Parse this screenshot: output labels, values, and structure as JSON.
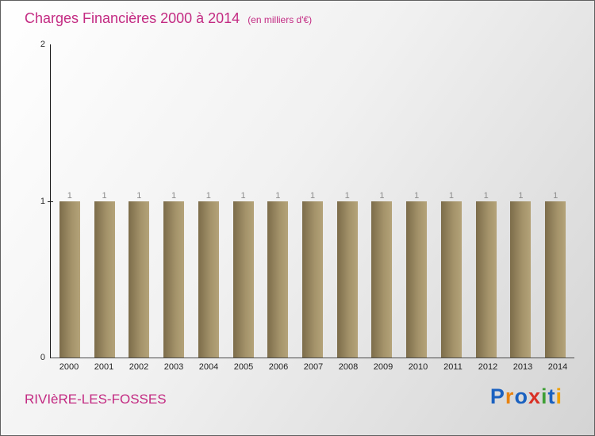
{
  "header": {
    "title": "Charges Financières 2000 à 2014",
    "subtitle": "(en milliers d'€)"
  },
  "footer": {
    "name": "RIVIèRE-LES-FOSSES",
    "logo_text": "Proxiti"
  },
  "logo": {
    "letters": [
      {
        "ch": "P",
        "color": "#1a61c0"
      },
      {
        "ch": "r",
        "color": "#e8820f"
      },
      {
        "ch": "o",
        "color": "#1a61c0"
      },
      {
        "ch": "x",
        "color": "#d93025"
      },
      {
        "ch": "i",
        "color": "#3f9f36"
      },
      {
        "ch": "t",
        "color": "#1a61c0"
      },
      {
        "ch": "i",
        "color": "#efa000"
      }
    ]
  },
  "colors": {
    "accent": "#c32a82",
    "bar_gradient_from": "#7c6c4a",
    "bar_gradient_to": "#b4a379",
    "value_label": "#8a8a8a",
    "axis": "#1a1a1a"
  },
  "chart_data": {
    "type": "bar",
    "title": "Charges Financières 2000 à 2014",
    "subtitle": "(en milliers d'€)",
    "categories": [
      "2000",
      "2001",
      "2002",
      "2003",
      "2004",
      "2005",
      "2006",
      "2007",
      "2008",
      "2009",
      "2010",
      "2011",
      "2012",
      "2013",
      "2014"
    ],
    "values": [
      1,
      1,
      1,
      1,
      1,
      1,
      1,
      1,
      1,
      1,
      1,
      1,
      1,
      1,
      1
    ],
    "xlabel": "",
    "ylabel": "",
    "ylim": [
      0,
      2
    ],
    "yticks": [
      0,
      1,
      2
    ],
    "grid": false,
    "legend": false,
    "value_labels_shown": true
  }
}
